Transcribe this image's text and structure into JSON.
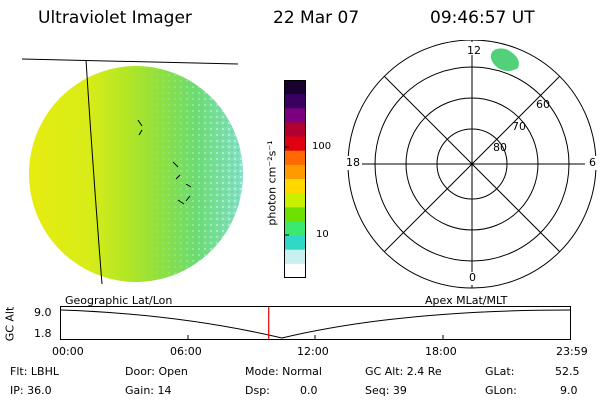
{
  "header": {
    "title": "Ultraviolet Imager",
    "date": "22 Mar 07",
    "time": "09:46:57 UT"
  },
  "colorbar": {
    "unit_label": "photon cm⁻²s⁻¹",
    "tick_100": "100",
    "tick_10": "10",
    "colors": [
      "#1a0030",
      "#3a0060",
      "#7a0080",
      "#b00030",
      "#e00010",
      "#ff6a00",
      "#ff9a00",
      "#ffd800",
      "#c8f000",
      "#6ee000",
      "#3ce870",
      "#30d8c8",
      "#c8f0f0",
      "#ffffff"
    ]
  },
  "polar_plot": {
    "mlt_labels": {
      "top": "12",
      "bottom": "0",
      "left": "18",
      "right": "6"
    },
    "lat_labels": [
      "60",
      "70",
      "80"
    ]
  },
  "timeline": {
    "ylabel": "GC Alt",
    "ytick_top": "9.0",
    "ytick_bottom": "1.8",
    "left_title": "Geographic Lat/Lon",
    "right_title": "Apex MLat/MLT",
    "xticks": [
      "00:00",
      "06:00",
      "12:00",
      "18:00",
      "23:59"
    ],
    "cursor_fraction": 0.408
  },
  "info": {
    "flt": "Flt: LBHL",
    "door": "Door: Open",
    "mode": "Mode: Normal",
    "gc_alt": "GC Alt: 2.4 Re",
    "glat_label": "GLat:",
    "glat_value": "52.5",
    "ip": "IP: 36.0",
    "gain": "Gain: 14",
    "dsp_label": "Dsp:",
    "dsp_value": "0.0",
    "seq": "Seq: 39",
    "glon_label": "GLon:",
    "glon_value": "9.0"
  }
}
